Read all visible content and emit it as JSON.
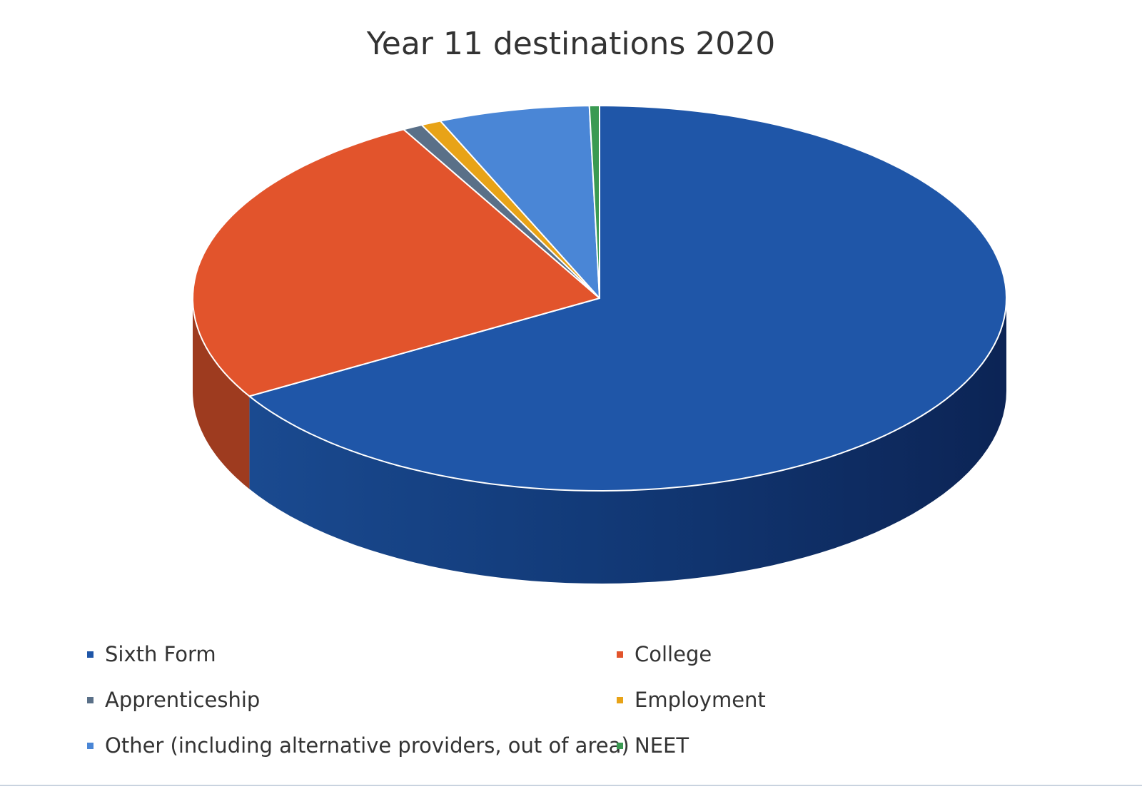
{
  "chart_data": {
    "type": "pie",
    "title": "Year 11 destinations 2020",
    "three_d": true,
    "start_angle_deg": 0,
    "direction": "clockwise",
    "legend_position": "bottom",
    "slices": [
      {
        "label": "Sixth Form",
        "value": 66.5,
        "color": "#1f56a8"
      },
      {
        "label": "College",
        "value": 25.5,
        "color": "#e2542c"
      },
      {
        "label": "Apprenticeship",
        "value": 0.8,
        "color": "#5a7088"
      },
      {
        "label": "Employment",
        "value": 0.8,
        "color": "#e8a317"
      },
      {
        "label": "Other (including alternative providers, out of area)",
        "value": 6.0,
        "color": "#4a86d6"
      },
      {
        "label": "NEET",
        "value": 0.4,
        "color": "#3a9a52"
      }
    ]
  }
}
